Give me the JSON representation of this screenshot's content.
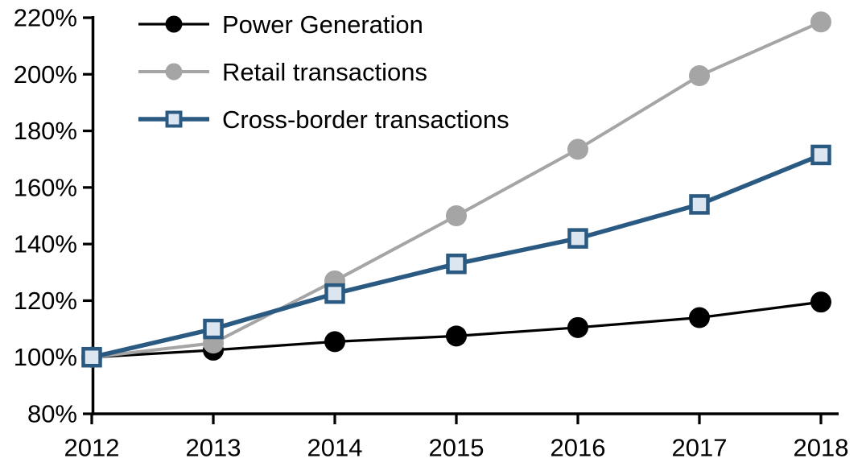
{
  "chart_data": {
    "type": "line",
    "title": "",
    "xlabel": "",
    "ylabel": "",
    "categories": [
      "2012",
      "2013",
      "2014",
      "2015",
      "2016",
      "2017",
      "2018"
    ],
    "y_ticks": [
      80,
      100,
      120,
      140,
      160,
      180,
      200,
      220
    ],
    "y_tick_labels": [
      "80%",
      "100%",
      "120%",
      "140%",
      "160%",
      "180%",
      "200%",
      "220%"
    ],
    "ylim": [
      80,
      220
    ],
    "grid": false,
    "legend_position": "top-left",
    "series": [
      {
        "name": "Power Generation",
        "values": [
          100,
          102.5,
          105.5,
          107.5,
          110.5,
          114,
          119.5
        ],
        "color": "#000000",
        "marker": "circle",
        "marker_fill": "#000000",
        "line_width": 3.25
      },
      {
        "name": "Retail transactions",
        "values": [
          100,
          105,
          127,
          150,
          173.5,
          199.5,
          218.5
        ],
        "color": "#a5a5a5",
        "marker": "circle",
        "marker_fill": "#a5a5a5",
        "line_width": 4
      },
      {
        "name": "Cross-border transactions",
        "values": [
          100,
          110,
          122.5,
          133,
          142,
          154,
          171.5
        ],
        "color": "#2a5a82",
        "marker": "square",
        "marker_fill": "#dce6f1",
        "line_width": 5.5
      }
    ],
    "axis_color": "#000000",
    "text_color": "#000000"
  }
}
